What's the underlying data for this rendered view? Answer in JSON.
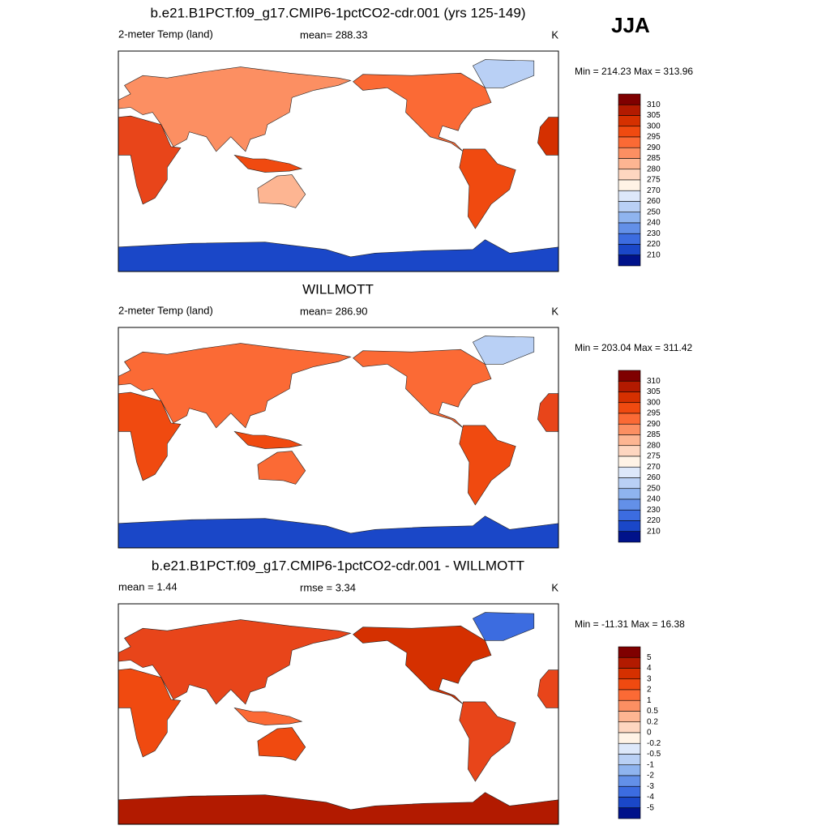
{
  "season": "JJA",
  "panels": [
    {
      "title": "b.e21.B1PCT.f09_g17.CMIP6-1pctCO2-cdr.001 (yrs 125-149)",
      "left": "2-meter Temp (land)",
      "center": "mean= 288.33",
      "right": "K",
      "range": "Min = 214.23 Max = 313.96",
      "colorbar": {
        "labels": [
          "310",
          "305",
          "300",
          "295",
          "290",
          "285",
          "280",
          "275",
          "270",
          "260",
          "250",
          "240",
          "230",
          "220",
          "210"
        ],
        "colors": [
          "#7f0000",
          "#b21a00",
          "#d53000",
          "#f04a10",
          "#fb6a35",
          "#fc8f62",
          "#fdb592",
          "#fed6c0",
          "#fff3e6",
          "#dde8fa",
          "#b9d0f5",
          "#8fb4ef",
          "#6390e8",
          "#3c6ce0",
          "#1a47c8",
          "#00128a"
        ]
      }
    },
    {
      "title": "WILLMOTT",
      "left": "2-meter Temp (land)",
      "center": "mean= 286.90",
      "right": "K",
      "range": "Min = 203.04 Max = 311.42",
      "colorbar": {
        "labels": [
          "310",
          "305",
          "300",
          "295",
          "290",
          "285",
          "280",
          "275",
          "270",
          "260",
          "250",
          "240",
          "230",
          "220",
          "210"
        ],
        "colors": [
          "#7f0000",
          "#b21a00",
          "#d53000",
          "#f04a10",
          "#fb6a35",
          "#fc8f62",
          "#fdb592",
          "#fed6c0",
          "#fff3e6",
          "#dde8fa",
          "#b9d0f5",
          "#8fb4ef",
          "#6390e8",
          "#3c6ce0",
          "#1a47c8",
          "#00128a"
        ]
      }
    },
    {
      "title": "b.e21.B1PCT.f09_g17.CMIP6-1pctCO2-cdr.001 - WILLMOTT",
      "left": "mean =   1.44",
      "center": "rmse =   3.34",
      "right": "K",
      "range": "Min = -11.31 Max =  16.38",
      "colorbar": {
        "labels": [
          "5",
          "4",
          "3",
          "2",
          "1",
          "0.5",
          "0.2",
          "0",
          "-0.2",
          "-0.5",
          "-1",
          "-2",
          "-3",
          "-4",
          "-5"
        ],
        "colors": [
          "#7f0000",
          "#b21a00",
          "#d53000",
          "#f04a10",
          "#fb6a35",
          "#fc8f62",
          "#fdb592",
          "#fed6c0",
          "#fff3e6",
          "#dde8fa",
          "#b9d0f5",
          "#8fb4ef",
          "#6390e8",
          "#3c6ce0",
          "#1a47c8",
          "#00128a"
        ]
      }
    }
  ]
}
